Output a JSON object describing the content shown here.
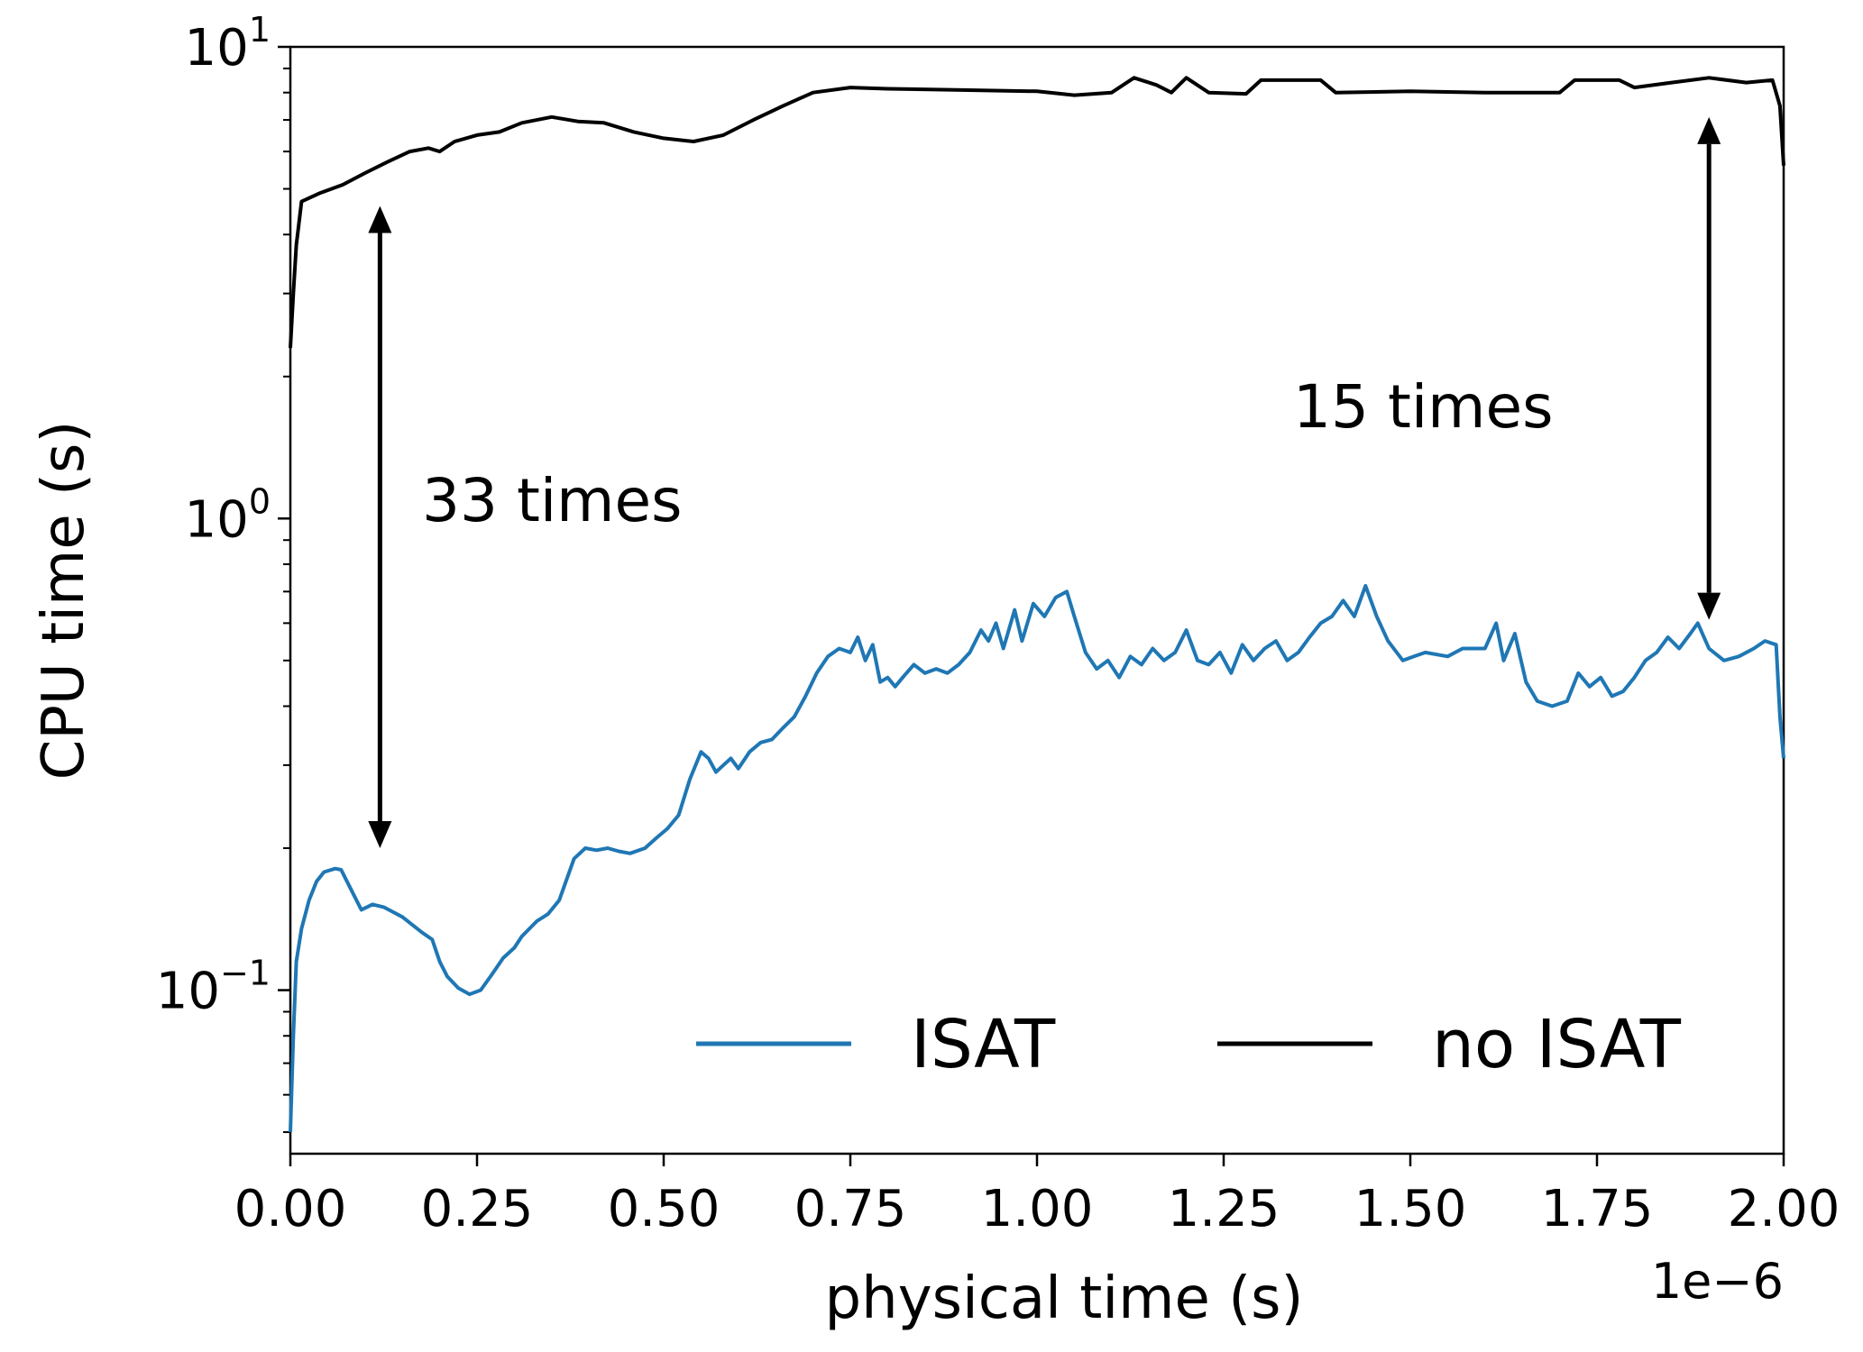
{
  "chart_data": {
    "type": "line",
    "xlabel": "physical time (s)",
    "ylabel": "CPU time (s)",
    "x_offset_text": "1e−6",
    "xscale": "linear",
    "yscale": "log",
    "xlim": [
      0.0,
      2e-06
    ],
    "ylim": [
      0.045,
      10.0
    ],
    "x_ticks": [
      0.0,
      2.5e-07,
      5e-07,
      7.5e-07,
      1e-06,
      1.25e-06,
      1.5e-06,
      1.75e-06,
      2e-06
    ],
    "x_tick_labels": [
      "0.00",
      "0.25",
      "0.50",
      "0.75",
      "1.00",
      "1.25",
      "1.50",
      "1.75",
      "2.00"
    ],
    "y_major_ticks": [
      0.1,
      1.0,
      10.0
    ],
    "y_tick_labels": [
      {
        "base": "10",
        "exp": "−1"
      },
      {
        "base": "10",
        "exp": "0"
      },
      {
        "base": "10",
        "exp": "1"
      }
    ],
    "grid": false,
    "legend": {
      "position": "bottom-right",
      "ncol": 2
    },
    "series": [
      {
        "name": "ISAT",
        "color": "#1f77b4",
        "points": [
          [
            0.0,
            0.05
          ],
          [
            4e-09,
            0.08
          ],
          [
            8e-09,
            0.115
          ],
          [
            1.5e-08,
            0.135
          ],
          [
            2.5e-08,
            0.155
          ],
          [
            3.5e-08,
            0.17
          ],
          [
            4.5e-08,
            0.178
          ],
          [
            6e-08,
            0.181
          ],
          [
            6.8e-08,
            0.18
          ],
          [
            8e-08,
            0.165
          ],
          [
            9.5e-08,
            0.148
          ],
          [
            1.1e-07,
            0.152
          ],
          [
            1.25e-07,
            0.15
          ],
          [
            1.5e-07,
            0.143
          ],
          [
            1.75e-07,
            0.133
          ],
          [
            1.9e-07,
            0.128
          ],
          [
            2e-07,
            0.115
          ],
          [
            2.1e-07,
            0.107
          ],
          [
            2.25e-07,
            0.101
          ],
          [
            2.4e-07,
            0.098
          ],
          [
            2.55e-07,
            0.1
          ],
          [
            2.7e-07,
            0.108
          ],
          [
            2.85e-07,
            0.117
          ],
          [
            3e-07,
            0.123
          ],
          [
            3.1e-07,
            0.13
          ],
          [
            3.3e-07,
            0.14
          ],
          [
            3.45e-07,
            0.145
          ],
          [
            3.6e-07,
            0.155
          ],
          [
            3.8e-07,
            0.19
          ],
          [
            3.95e-07,
            0.2
          ],
          [
            4.1e-07,
            0.198
          ],
          [
            4.25e-07,
            0.2
          ],
          [
            4.4e-07,
            0.197
          ],
          [
            4.55e-07,
            0.195
          ],
          [
            4.75e-07,
            0.2
          ],
          [
            4.9e-07,
            0.21
          ],
          [
            5.05e-07,
            0.22
          ],
          [
            5.2e-07,
            0.235
          ],
          [
            5.35e-07,
            0.28
          ],
          [
            5.5e-07,
            0.32
          ],
          [
            5.6e-07,
            0.31
          ],
          [
            5.7e-07,
            0.29
          ],
          [
            5.8e-07,
            0.3
          ],
          [
            5.9e-07,
            0.31
          ],
          [
            6e-07,
            0.295
          ],
          [
            6.15e-07,
            0.32
          ],
          [
            6.3e-07,
            0.335
          ],
          [
            6.45e-07,
            0.34
          ],
          [
            6.6e-07,
            0.36
          ],
          [
            6.75e-07,
            0.38
          ],
          [
            6.9e-07,
            0.42
          ],
          [
            7.05e-07,
            0.47
          ],
          [
            7.2e-07,
            0.51
          ],
          [
            7.35e-07,
            0.53
          ],
          [
            7.5e-07,
            0.52
          ],
          [
            7.6e-07,
            0.56
          ],
          [
            7.7e-07,
            0.5
          ],
          [
            7.8e-07,
            0.54
          ],
          [
            7.9e-07,
            0.45
          ],
          [
            8e-07,
            0.46
          ],
          [
            8.1e-07,
            0.44
          ],
          [
            8.2e-07,
            0.46
          ],
          [
            8.35e-07,
            0.49
          ],
          [
            8.5e-07,
            0.47
          ],
          [
            8.65e-07,
            0.48
          ],
          [
            8.8e-07,
            0.47
          ],
          [
            8.95e-07,
            0.49
          ],
          [
            9.1e-07,
            0.52
          ],
          [
            9.25e-07,
            0.58
          ],
          [
            9.35e-07,
            0.55
          ],
          [
            9.45e-07,
            0.6
          ],
          [
            9.55e-07,
            0.53
          ],
          [
            9.7e-07,
            0.64
          ],
          [
            9.8e-07,
            0.55
          ],
          [
            9.95e-07,
            0.66
          ],
          [
            1.01e-06,
            0.62
          ],
          [
            1.025e-06,
            0.68
          ],
          [
            1.04e-06,
            0.7
          ],
          [
            1.05e-06,
            0.62
          ],
          [
            1.065e-06,
            0.52
          ],
          [
            1.08e-06,
            0.48
          ],
          [
            1.095e-06,
            0.5
          ],
          [
            1.11e-06,
            0.46
          ],
          [
            1.125e-06,
            0.51
          ],
          [
            1.14e-06,
            0.49
          ],
          [
            1.155e-06,
            0.53
          ],
          [
            1.17e-06,
            0.5
          ],
          [
            1.185e-06,
            0.52
          ],
          [
            1.2e-06,
            0.58
          ],
          [
            1.215e-06,
            0.5
          ],
          [
            1.23e-06,
            0.49
          ],
          [
            1.245e-06,
            0.52
          ],
          [
            1.26e-06,
            0.47
          ],
          [
            1.275e-06,
            0.54
          ],
          [
            1.29e-06,
            0.5
          ],
          [
            1.305e-06,
            0.53
          ],
          [
            1.32e-06,
            0.55
          ],
          [
            1.335e-06,
            0.5
          ],
          [
            1.35e-06,
            0.52
          ],
          [
            1.365e-06,
            0.56
          ],
          [
            1.38e-06,
            0.6
          ],
          [
            1.395e-06,
            0.62
          ],
          [
            1.41e-06,
            0.67
          ],
          [
            1.425e-06,
            0.62
          ],
          [
            1.44e-06,
            0.72
          ],
          [
            1.455e-06,
            0.62
          ],
          [
            1.47e-06,
            0.55
          ],
          [
            1.49e-06,
            0.5
          ],
          [
            1.505e-06,
            0.51
          ],
          [
            1.52e-06,
            0.52
          ],
          [
            1.55e-06,
            0.51
          ],
          [
            1.57e-06,
            0.53
          ],
          [
            1.6e-06,
            0.53
          ],
          [
            1.615e-06,
            0.6
          ],
          [
            1.625e-06,
            0.5
          ],
          [
            1.64e-06,
            0.57
          ],
          [
            1.655e-06,
            0.45
          ],
          [
            1.67e-06,
            0.41
          ],
          [
            1.69e-06,
            0.4
          ],
          [
            1.71e-06,
            0.41
          ],
          [
            1.725e-06,
            0.47
          ],
          [
            1.74e-06,
            0.44
          ],
          [
            1.755e-06,
            0.46
          ],
          [
            1.77e-06,
            0.42
          ],
          [
            1.785e-06,
            0.43
          ],
          [
            1.8e-06,
            0.46
          ],
          [
            1.815e-06,
            0.5
          ],
          [
            1.83e-06,
            0.52
          ],
          [
            1.845e-06,
            0.56
          ],
          [
            1.86e-06,
            0.53
          ],
          [
            1.875e-06,
            0.57
          ],
          [
            1.885e-06,
            0.6
          ],
          [
            1.9e-06,
            0.53
          ],
          [
            1.92e-06,
            0.5
          ],
          [
            1.94e-06,
            0.51
          ],
          [
            1.96e-06,
            0.53
          ],
          [
            1.975e-06,
            0.55
          ],
          [
            1.99e-06,
            0.54
          ],
          [
            1.995e-06,
            0.38
          ],
          [
            2e-06,
            0.31
          ]
        ]
      },
      {
        "name": "no ISAT",
        "color": "#000000",
        "points": [
          [
            0.0,
            2.3
          ],
          [
            4e-09,
            3.0
          ],
          [
            8e-09,
            3.8
          ],
          [
            1.5e-08,
            4.7
          ],
          [
            4e-08,
            4.9
          ],
          [
            7e-08,
            5.1
          ],
          [
            1e-07,
            5.4
          ],
          [
            1.3e-07,
            5.7
          ],
          [
            1.6e-07,
            6.0
          ],
          [
            1.85e-07,
            6.1
          ],
          [
            2e-07,
            6.0
          ],
          [
            2.2e-07,
            6.3
          ],
          [
            2.5e-07,
            6.5
          ],
          [
            2.8e-07,
            6.6
          ],
          [
            3.1e-07,
            6.9
          ],
          [
            3.5e-07,
            7.1
          ],
          [
            3.85e-07,
            6.95
          ],
          [
            4.2e-07,
            6.9
          ],
          [
            4.6e-07,
            6.6
          ],
          [
            5e-07,
            6.4
          ],
          [
            5.4e-07,
            6.3
          ],
          [
            5.8e-07,
            6.5
          ],
          [
            6.2e-07,
            7.0
          ],
          [
            6.6e-07,
            7.5
          ],
          [
            7e-07,
            8.0
          ],
          [
            7.5e-07,
            8.2
          ],
          [
            8e-07,
            8.15
          ],
          [
            9e-07,
            8.1
          ],
          [
            1e-06,
            8.05
          ],
          [
            1.05e-06,
            7.9
          ],
          [
            1.1e-06,
            8.0
          ],
          [
            1.13e-06,
            8.6
          ],
          [
            1.16e-06,
            8.3
          ],
          [
            1.18e-06,
            8.0
          ],
          [
            1.2e-06,
            8.6
          ],
          [
            1.23e-06,
            8.0
          ],
          [
            1.28e-06,
            7.95
          ],
          [
            1.3e-06,
            8.5
          ],
          [
            1.38e-06,
            8.5
          ],
          [
            1.4e-06,
            8.0
          ],
          [
            1.5e-06,
            8.05
          ],
          [
            1.6e-06,
            8.0
          ],
          [
            1.7e-06,
            8.0
          ],
          [
            1.72e-06,
            8.5
          ],
          [
            1.78e-06,
            8.5
          ],
          [
            1.8e-06,
            8.2
          ],
          [
            1.85e-06,
            8.4
          ],
          [
            1.9e-06,
            8.6
          ],
          [
            1.95e-06,
            8.4
          ],
          [
            1.985e-06,
            8.5
          ],
          [
            1.995e-06,
            7.5
          ],
          [
            2e-06,
            5.6
          ]
        ]
      }
    ],
    "annotations": [
      {
        "text": "33 times",
        "arrow_x": 1.2e-07,
        "arrow_y_from": 0.2,
        "arrow_y_to": 4.6
      },
      {
        "text": "15 times",
        "arrow_x": 1.9e-06,
        "arrow_y_from": 0.61,
        "arrow_y_to": 7.1
      }
    ]
  }
}
